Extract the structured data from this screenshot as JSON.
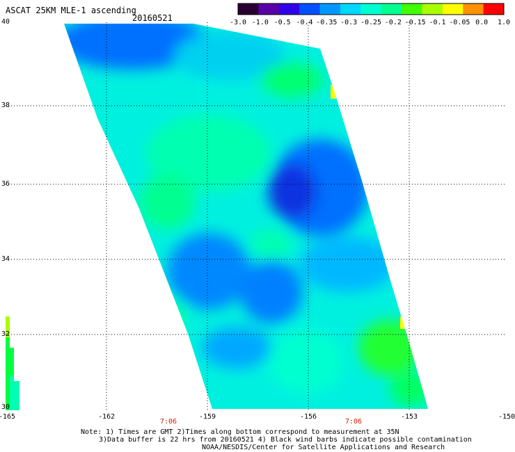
{
  "header": {
    "title": "ASCAT 25KM MLE-1 ascending",
    "date": "20160521"
  },
  "colorbar": {
    "labels": [
      "-3.0",
      "-1.0",
      "-0.5",
      "-0.4",
      "-0.35",
      "-0.3",
      "-0.25",
      "-0.2",
      "-0.15",
      "-0.1",
      "-0.05",
      "0.0",
      "1.0"
    ],
    "colors": [
      "#2a0033",
      "#5a00a8",
      "#3000e8",
      "#0050ff",
      "#0098ff",
      "#00d8ff",
      "#00ffd0",
      "#00ff90",
      "#40ff00",
      "#a8ff00",
      "#ffff00",
      "#ff9000",
      "#ff0000"
    ]
  },
  "axes": {
    "lat_labels": [
      "40",
      "38",
      "36",
      "34",
      "32",
      "30"
    ],
    "lon_labels": [
      "-165",
      "-162",
      "-159",
      "-156",
      "-153",
      "-150"
    ],
    "time_labels": [
      "7:06",
      "7:06"
    ]
  },
  "notes": {
    "line1": "Note: 1) Times are GMT 2)Times along bottom correspond to measurement at 35N",
    "line2": "3)Data buffer is 22 hrs from 20160521 4) Black wind barbs indicate possible contamination",
    "line3": "NOAA/NESDIS/Center for Satellite Applications and Research"
  },
  "colors": {
    "grid": "#000000",
    "time_text": "#cc2200"
  }
}
